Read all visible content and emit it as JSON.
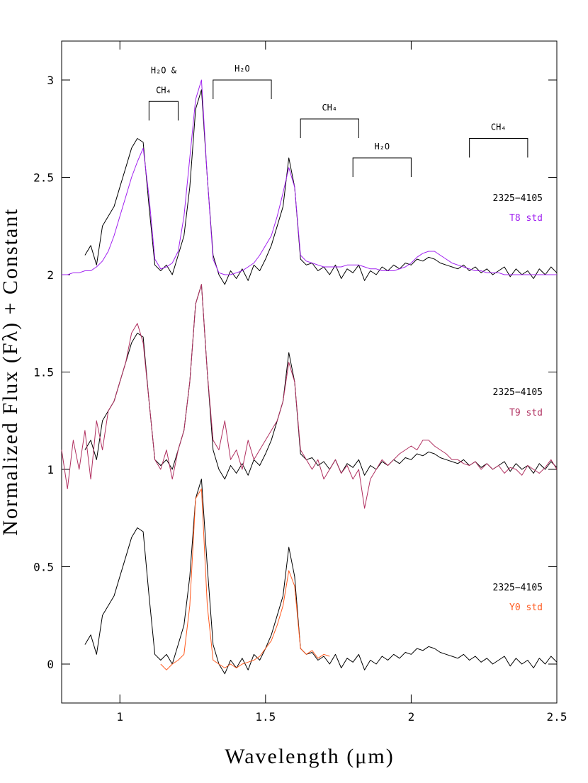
{
  "chart_data": {
    "type": "line",
    "xlabel": "Wavelength (μm)",
    "ylabel": "Normalized Flux (Fλ) + Constant",
    "xlim": [
      0.8,
      2.5
    ],
    "ylim": [
      -0.2,
      3.2
    ],
    "xticks": [
      1,
      1.5,
      2,
      2.5
    ],
    "yticks": [
      0,
      0.5,
      1,
      1.5,
      2,
      2.5,
      3
    ],
    "x": [
      0.8,
      0.82,
      0.84,
      0.86,
      0.88,
      0.9,
      0.92,
      0.94,
      0.96,
      0.98,
      1.0,
      1.02,
      1.04,
      1.06,
      1.08,
      1.1,
      1.12,
      1.14,
      1.16,
      1.18,
      1.2,
      1.22,
      1.24,
      1.26,
      1.28,
      1.3,
      1.32,
      1.34,
      1.36,
      1.38,
      1.4,
      1.42,
      1.44,
      1.46,
      1.48,
      1.5,
      1.52,
      1.54,
      1.56,
      1.58,
      1.6,
      1.62,
      1.64,
      1.66,
      1.68,
      1.7,
      1.72,
      1.74,
      1.76,
      1.78,
      1.8,
      1.82,
      1.84,
      1.86,
      1.88,
      1.9,
      1.92,
      1.94,
      1.96,
      1.98,
      2.0,
      2.02,
      2.04,
      2.06,
      2.08,
      2.1,
      2.12,
      2.14,
      2.16,
      2.18,
      2.2,
      2.22,
      2.24,
      2.26,
      2.28,
      2.3,
      2.32,
      2.34,
      2.36,
      2.38,
      2.4,
      2.42,
      2.44,
      2.46,
      2.48,
      2.5
    ],
    "series": [
      {
        "name": "2325−4105",
        "color": "#000000",
        "values": [
          null,
          null,
          null,
          null,
          2.1,
          2.15,
          2.05,
          2.25,
          2.3,
          2.35,
          2.45,
          2.55,
          2.65,
          2.7,
          2.68,
          2.35,
          2.05,
          2.02,
          2.05,
          2.0,
          2.1,
          2.2,
          2.45,
          2.85,
          2.95,
          2.5,
          2.1,
          2.0,
          1.95,
          2.02,
          1.98,
          2.03,
          1.97,
          2.05,
          2.02,
          2.08,
          2.15,
          2.25,
          2.35,
          2.6,
          2.45,
          2.08,
          2.05,
          2.06,
          2.02,
          2.04,
          2.0,
          2.05,
          1.98,
          2.03,
          2.01,
          2.05,
          1.97,
          2.02,
          2.0,
          2.04,
          2.02,
          2.05,
          2.03,
          2.06,
          2.05,
          2.08,
          2.07,
          2.09,
          2.08,
          2.06,
          2.05,
          2.04,
          2.03,
          2.05,
          2.02,
          2.04,
          2.01,
          2.03,
          2.0,
          2.02,
          2.04,
          1.99,
          2.03,
          2.0,
          2.02,
          1.98,
          2.03,
          2.0,
          2.04,
          2.01
        ]
      },
      {
        "name": "T8 std",
        "color": "#a020f0",
        "values": [
          2.0,
          2.0,
          2.01,
          2.01,
          2.02,
          2.02,
          2.04,
          2.07,
          2.12,
          2.2,
          2.3,
          2.4,
          2.5,
          2.58,
          2.65,
          2.4,
          2.08,
          2.03,
          2.04,
          2.06,
          2.12,
          2.3,
          2.6,
          2.9,
          3.0,
          2.5,
          2.08,
          2.01,
          2.0,
          2.0,
          2.01,
          2.02,
          2.04,
          2.06,
          2.1,
          2.15,
          2.2,
          2.3,
          2.42,
          2.55,
          2.45,
          2.1,
          2.07,
          2.06,
          2.05,
          2.04,
          2.04,
          2.04,
          2.04,
          2.05,
          2.05,
          2.05,
          2.04,
          2.03,
          2.03,
          2.02,
          2.02,
          2.02,
          2.03,
          2.04,
          2.06,
          2.09,
          2.11,
          2.12,
          2.12,
          2.1,
          2.08,
          2.06,
          2.05,
          2.04,
          2.03,
          2.02,
          2.02,
          2.01,
          2.01,
          2.01,
          2.0,
          2.0,
          2.0,
          2.0,
          2.0,
          2.0,
          2.0,
          2.0,
          2.0,
          2.0
        ]
      },
      {
        "name": "2325−4105",
        "color": "#000000",
        "values": [
          null,
          null,
          null,
          null,
          1.1,
          1.15,
          1.05,
          1.25,
          1.3,
          1.35,
          1.45,
          1.55,
          1.65,
          1.7,
          1.68,
          1.35,
          1.05,
          1.02,
          1.05,
          1.0,
          1.1,
          1.2,
          1.45,
          1.85,
          1.95,
          1.5,
          1.1,
          1.0,
          0.95,
          1.02,
          0.98,
          1.03,
          0.97,
          1.05,
          1.02,
          1.08,
          1.15,
          1.25,
          1.35,
          1.6,
          1.45,
          1.08,
          1.05,
          1.06,
          1.02,
          1.04,
          1.0,
          1.05,
          0.98,
          1.03,
          1.01,
          1.05,
          0.97,
          1.02,
          1.0,
          1.04,
          1.02,
          1.05,
          1.03,
          1.06,
          1.05,
          1.08,
          1.07,
          1.09,
          1.08,
          1.06,
          1.05,
          1.04,
          1.03,
          1.05,
          1.02,
          1.04,
          1.01,
          1.03,
          1.0,
          1.02,
          1.04,
          0.99,
          1.03,
          1.0,
          1.02,
          0.98,
          1.03,
          1.0,
          1.04,
          1.01
        ]
      },
      {
        "name": "T9 std",
        "color": "#b03060",
        "values": [
          1.1,
          0.9,
          1.15,
          1.0,
          1.2,
          0.95,
          1.25,
          1.1,
          1.3,
          1.35,
          1.45,
          1.55,
          1.7,
          1.75,
          1.65,
          1.35,
          1.05,
          1.0,
          1.1,
          0.95,
          1.1,
          1.2,
          1.45,
          1.85,
          1.95,
          1.5,
          1.15,
          1.1,
          1.25,
          1.05,
          1.1,
          1.0,
          1.15,
          1.05,
          1.1,
          1.15,
          1.2,
          1.25,
          1.35,
          1.55,
          1.45,
          1.1,
          1.05,
          1.0,
          1.05,
          0.95,
          1.0,
          1.05,
          0.98,
          1.02,
          0.95,
          1.0,
          0.8,
          0.95,
          1.0,
          1.05,
          1.02,
          1.05,
          1.08,
          1.1,
          1.12,
          1.1,
          1.15,
          1.15,
          1.12,
          1.1,
          1.08,
          1.05,
          1.05,
          1.03,
          1.02,
          1.04,
          1.0,
          1.03,
          1.0,
          1.02,
          0.98,
          1.01,
          1.0,
          0.97,
          1.02,
          1.0,
          0.98,
          1.01,
          1.05,
          1.0
        ]
      },
      {
        "name": "2325−4105",
        "color": "#000000",
        "values": [
          null,
          null,
          null,
          null,
          0.1,
          0.15,
          0.05,
          0.25,
          0.3,
          0.35,
          0.45,
          0.55,
          0.65,
          0.7,
          0.68,
          0.35,
          0.05,
          0.02,
          0.05,
          0.0,
          0.1,
          0.2,
          0.45,
          0.85,
          0.95,
          0.5,
          0.1,
          0.0,
          -0.05,
          0.02,
          -0.02,
          0.03,
          -0.03,
          0.05,
          0.02,
          0.08,
          0.15,
          0.25,
          0.35,
          0.6,
          0.45,
          0.08,
          0.05,
          0.06,
          0.02,
          0.04,
          0.0,
          0.05,
          -0.02,
          0.03,
          0.01,
          0.05,
          -0.03,
          0.02,
          0.0,
          0.04,
          0.02,
          0.05,
          0.03,
          0.06,
          0.05,
          0.08,
          0.07,
          0.09,
          0.08,
          0.06,
          0.05,
          0.04,
          0.03,
          0.05,
          0.02,
          0.04,
          0.01,
          0.03,
          0.0,
          0.02,
          0.04,
          -0.01,
          0.03,
          0.0,
          0.02,
          -0.02,
          0.03,
          0.0,
          0.04,
          0.01
        ]
      },
      {
        "name": "Y0 std",
        "color": "#ff5a1f",
        "values": [
          null,
          null,
          null,
          null,
          null,
          null,
          null,
          null,
          null,
          null,
          null,
          null,
          null,
          null,
          null,
          null,
          null,
          0.0,
          -0.03,
          0.0,
          0.02,
          0.05,
          0.3,
          0.85,
          0.9,
          0.3,
          0.02,
          0.0,
          -0.02,
          0.0,
          -0.02,
          0.0,
          0.01,
          0.02,
          0.04,
          0.08,
          0.12,
          0.2,
          0.3,
          0.48,
          0.4,
          0.08,
          0.05,
          0.07,
          0.03,
          0.05,
          0.04,
          null,
          null,
          null,
          null,
          null,
          null,
          null,
          null,
          null,
          null,
          null,
          null,
          null,
          null,
          null,
          null,
          null,
          null,
          null,
          null,
          null,
          null,
          null,
          null,
          null,
          null,
          null,
          null,
          null,
          null,
          null,
          null,
          null,
          null,
          null,
          null,
          null,
          null,
          null
        ]
      }
    ],
    "annotations": [
      {
        "lines": [
          "H₂O &",
          "CH₄"
        ],
        "x": [
          1.1,
          1.2
        ],
        "y": 2.89
      },
      {
        "lines": [
          "H₂O"
        ],
        "x": [
          1.32,
          1.52
        ],
        "y": 3.0
      },
      {
        "lines": [
          "CH₄"
        ],
        "x": [
          1.62,
          1.82
        ],
        "y": 2.8
      },
      {
        "lines": [
          "H₂O"
        ],
        "x": [
          1.8,
          2.0
        ],
        "y": 2.6
      },
      {
        "lines": [
          "CH₄"
        ],
        "x": [
          2.2,
          2.4
        ],
        "y": 2.7
      }
    ]
  }
}
